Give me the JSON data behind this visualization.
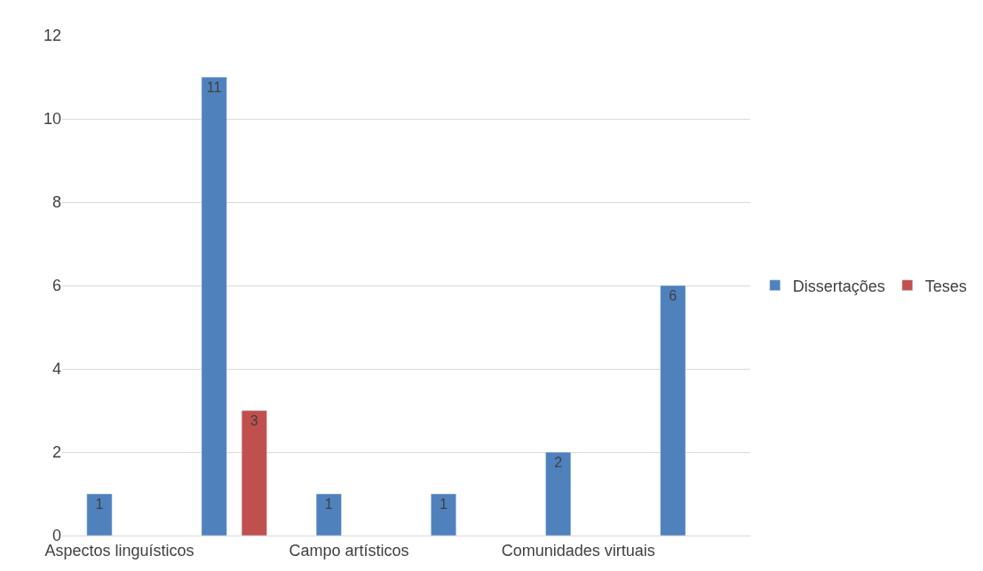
{
  "chart_data": {
    "type": "bar",
    "categories": [
      "Aspectos linguísticos",
      null,
      "Campo artísticos",
      null,
      "Comunidades virtuais",
      null
    ],
    "series": [
      {
        "name": "Dissertações",
        "color": "#4f81bd",
        "values": [
          1,
          11,
          1,
          1,
          2,
          6
        ]
      },
      {
        "name": "Teses",
        "color": "#c0504d",
        "values": [
          null,
          3,
          null,
          null,
          null,
          null
        ]
      }
    ],
    "ylim": [
      0,
      12
    ],
    "yticks": [
      0,
      2,
      4,
      6,
      8,
      10,
      12
    ],
    "grid": "y",
    "legend": "right",
    "data_labels": true
  }
}
